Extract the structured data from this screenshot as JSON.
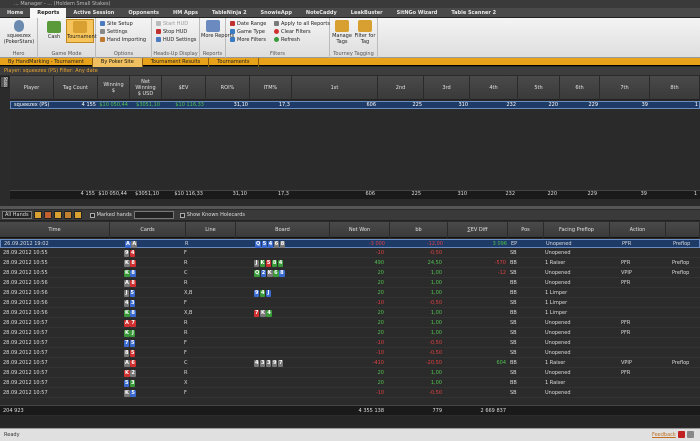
{
  "title": "... Manager - ... (Holdem Small Stakes)",
  "colors": {
    "accent": "#e8a21a",
    "selected_row": "#1e3a66",
    "positive": "#50c050",
    "negative": "#e04040"
  },
  "menu": [
    "Home",
    "Reports",
    "Active Session",
    "Opponents",
    "HM Apps",
    "TableNinja 2",
    "SnowieApp",
    "NoteCaddy",
    "LeakBuster",
    "SitNGo Wizard",
    "Table Scanner 2"
  ],
  "menu_active": "Reports",
  "ribbon": {
    "hero": {
      "name": "squeezex",
      "site": "(PokerStars)",
      "label": "Hero"
    },
    "game_mode": {
      "cash": "Cash",
      "tournament": "Tournament",
      "label": "Game Mode"
    },
    "options": {
      "site_setup": "Site Setup",
      "settings": "Settings",
      "hand_importing": "Hand Importing",
      "label": "Options"
    },
    "hud": {
      "start": "Start HUD",
      "stop": "Stop HUD",
      "settings": "HUD Settings",
      "label": "Heads-Up Display"
    },
    "reports": {
      "more": "More Reports",
      "label": "Reports"
    },
    "filters": {
      "date_range": "Date Range",
      "game_type": "Game Type",
      "more_filters": "More Filters",
      "apply_all": "Apply to all Reports",
      "clear": "Clear Filters",
      "refresh": "Refresh",
      "label": "Filters"
    },
    "tagging": {
      "manage": "Manage Tags",
      "filter": "Filter for Tag",
      "label": "Tourney Tagging"
    }
  },
  "tabs": [
    "By HandMarking - Tournament",
    "By Poker Site",
    "Tournament Results",
    "Tournaments"
  ],
  "tab_selected": 1,
  "filter_text": "Player: squeezex (PS)   Filter: Any date",
  "side_tab": "Stats",
  "summary": {
    "headers": [
      "Player",
      "Tag Count",
      "Winning\n$",
      "Net\nWinning\n$ USD",
      "$EV",
      "ROI%",
      "ITM%",
      "1st",
      "2nd",
      "3rd",
      "4th",
      "5th",
      "6th",
      "7th",
      "8th"
    ],
    "row": [
      "squeezex (PS)",
      "4 155",
      "$10 050,44",
      "$3051,10",
      "$10 116,33",
      "31,10",
      "17,3",
      "606",
      "225",
      "310",
      "232",
      "220",
      "229",
      "39",
      "1"
    ],
    "totals": [
      "",
      "4 155",
      "$10 050,44",
      "$3051,10",
      "$10 116,33",
      "31,10",
      "17,3",
      "606",
      "225",
      "310",
      "232",
      "220",
      "229",
      "39",
      "1"
    ]
  },
  "toolbar2": {
    "select": "All Hands",
    "marked": "Marked hands",
    "show_known": "Show Known Holecards"
  },
  "hands": {
    "headers": [
      "Time",
      "Cards",
      "Line",
      "Board",
      "Net Won",
      "bb",
      "∑EV Diff",
      "Pos",
      "Facing Preflop",
      "Action",
      ""
    ],
    "rows": [
      {
        "time": "26.09.2012 19:02",
        "cards": [
          [
            "A",
            "#3a6ad0"
          ],
          [
            "A",
            "#777"
          ]
        ],
        "line": "R",
        "board": [
          [
            "Q",
            "#3a6ad0"
          ],
          [
            "5",
            "#3a6ad0"
          ],
          [
            "4",
            "#3a6ad0"
          ],
          [
            "6",
            "#777"
          ],
          [
            "8",
            "#777"
          ]
        ],
        "net": "-3 000",
        "bb": "-12,00",
        "ev": "3 096",
        "pos": "EP",
        "facing": "Unopened",
        "action": "PFR",
        "extra": "Preflop"
      },
      {
        "time": "28.09.2012 10:55",
        "cards": [
          [
            "9",
            "#777"
          ],
          [
            "4",
            "#d03030"
          ]
        ],
        "line": "F",
        "board": [],
        "net": "-10",
        "bb": "-0,50",
        "ev": "",
        "pos": "SB",
        "facing": "Unopened",
        "action": "",
        "extra": ""
      },
      {
        "time": "28.09.2012 10:55",
        "cards": [
          [
            "K",
            "#777"
          ],
          [
            "8",
            "#d03030"
          ]
        ],
        "line": "R",
        "board": [
          [
            "J",
            "#777"
          ],
          [
            "K",
            "#3a9a3a"
          ],
          [
            "5",
            "#d03030"
          ],
          [
            "8",
            "#3a9a3a"
          ],
          [
            "4",
            "#3a9a3a"
          ]
        ],
        "net": "490",
        "bb": "24,50",
        "ev": "-570",
        "pos": "BB",
        "facing": "1 Raiser",
        "action": "PFR",
        "extra": "Preflop"
      },
      {
        "time": "28.09.2012 10:55",
        "cards": [
          [
            "K",
            "#3a9a3a"
          ],
          [
            "8",
            "#3a6ad0"
          ]
        ],
        "line": "C",
        "board": [
          [
            "Q",
            "#3a9a3a"
          ],
          [
            "2",
            "#3a6ad0"
          ],
          [
            "K",
            "#777"
          ],
          [
            "6",
            "#3a9a3a"
          ],
          [
            "8",
            "#3a6ad0"
          ]
        ],
        "net": "20",
        "bb": "1,00",
        "ev": "-12",
        "pos": "SB",
        "facing": "Unopened",
        "action": "VPIP",
        "extra": "Preflop"
      },
      {
        "time": "28.09.2012 10:56",
        "cards": [
          [
            "A",
            "#777"
          ],
          [
            "8",
            "#d03030"
          ]
        ],
        "line": "R",
        "board": [],
        "net": "20",
        "bb": "1,00",
        "ev": "",
        "pos": "BB",
        "facing": "Unopened",
        "action": "PFR",
        "extra": ""
      },
      {
        "time": "28.09.2012 10:56",
        "cards": [
          [
            "J",
            "#777"
          ],
          [
            "5",
            "#3a6ad0"
          ]
        ],
        "line": "X,B",
        "board": [
          [
            "9",
            "#3a6ad0"
          ],
          [
            "4",
            "#3a9a3a"
          ],
          [
            "J",
            "#3a6ad0"
          ]
        ],
        "net": "20",
        "bb": "1,00",
        "ev": "",
        "pos": "BB",
        "facing": "1 Limper",
        "action": "",
        "extra": ""
      },
      {
        "time": "28.09.2012 10:56",
        "cards": [
          [
            "4",
            "#777"
          ],
          [
            "3",
            "#3a6ad0"
          ]
        ],
        "line": "F",
        "board": [],
        "net": "-10",
        "bb": "-0,50",
        "ev": "",
        "pos": "SB",
        "facing": "1 Limper",
        "action": "",
        "extra": ""
      },
      {
        "time": "28.09.2012 10:56",
        "cards": [
          [
            "K",
            "#3a9a3a"
          ],
          [
            "8",
            "#3a6ad0"
          ]
        ],
        "line": "X,B",
        "board": [
          [
            "7",
            "#d03030"
          ],
          [
            "K",
            "#777"
          ],
          [
            "4",
            "#3a9a3a"
          ]
        ],
        "net": "20",
        "bb": "1,00",
        "ev": "",
        "pos": "BB",
        "facing": "1 Limper",
        "action": "",
        "extra": ""
      },
      {
        "time": "28.09.2012 10:57",
        "cards": [
          [
            "A",
            "#d03030"
          ],
          [
            "7",
            "#d03030"
          ]
        ],
        "line": "R",
        "board": [],
        "net": "20",
        "bb": "1,00",
        "ev": "",
        "pos": "SB",
        "facing": "Unopened",
        "action": "PFR",
        "extra": ""
      },
      {
        "time": "28.09.2012 10:57",
        "cards": [
          [
            "K",
            "#3a9a3a"
          ],
          [
            "J",
            "#3a9a3a"
          ]
        ],
        "line": "R",
        "board": [],
        "net": "20",
        "bb": "1,00",
        "ev": "",
        "pos": "SB",
        "facing": "Unopened",
        "action": "PFR",
        "extra": ""
      },
      {
        "time": "28.09.2012 10:57",
        "cards": [
          [
            "7",
            "#3a6ad0"
          ],
          [
            "5",
            "#3a6ad0"
          ]
        ],
        "line": "F",
        "board": [],
        "net": "-10",
        "bb": "-0,50",
        "ev": "",
        "pos": "SB",
        "facing": "Unopened",
        "action": "",
        "extra": ""
      },
      {
        "time": "28.09.2012 10:57",
        "cards": [
          [
            "8",
            "#777"
          ],
          [
            "5",
            "#d03030"
          ]
        ],
        "line": "F",
        "board": [],
        "net": "-10",
        "bb": "-0,50",
        "ev": "",
        "pos": "SB",
        "facing": "Unopened",
        "action": "",
        "extra": ""
      },
      {
        "time": "28.09.2012 10:57",
        "cards": [
          [
            "A",
            "#777"
          ],
          [
            "6",
            "#d03030"
          ]
        ],
        "line": "C",
        "board": [
          [
            "4",
            "#777"
          ],
          [
            "3",
            "#777"
          ],
          [
            "3",
            "#777"
          ],
          [
            "9",
            "#777"
          ],
          [
            "7",
            "#777"
          ]
        ],
        "net": "-410",
        "bb": "-20,50",
        "ev": "604",
        "pos": "BB",
        "facing": "1 Raiser",
        "action": "VPIP",
        "extra": "Preflop"
      },
      {
        "time": "28.09.2012 10:57",
        "cards": [
          [
            "K",
            "#d03030"
          ],
          [
            "2",
            "#777"
          ]
        ],
        "line": "R",
        "board": [],
        "net": "20",
        "bb": "1,00",
        "ev": "",
        "pos": "SB",
        "facing": "Unopened",
        "action": "PFR",
        "extra": ""
      },
      {
        "time": "28.09.2012 10:57",
        "cards": [
          [
            "5",
            "#3a6ad0"
          ],
          [
            "3",
            "#3a9a3a"
          ]
        ],
        "line": "X",
        "board": [],
        "net": "20",
        "bb": "1,00",
        "ev": "",
        "pos": "BB",
        "facing": "1 Raiser",
        "action": "",
        "extra": ""
      },
      {
        "time": "28.09.2012 10:57",
        "cards": [
          [
            "K",
            "#777"
          ],
          [
            "5",
            "#3a6ad0"
          ]
        ],
        "line": "F",
        "board": [],
        "net": "-10",
        "bb": "-0,50",
        "ev": "",
        "pos": "SB",
        "facing": "Unopened",
        "action": "",
        "extra": ""
      }
    ],
    "footer": {
      "count": "204 923",
      "net": "4 355 138",
      "bb": "779",
      "ev": "2 669 837"
    }
  },
  "status": {
    "left": "Ready",
    "feedback": "Feedback",
    "help": "Help"
  }
}
